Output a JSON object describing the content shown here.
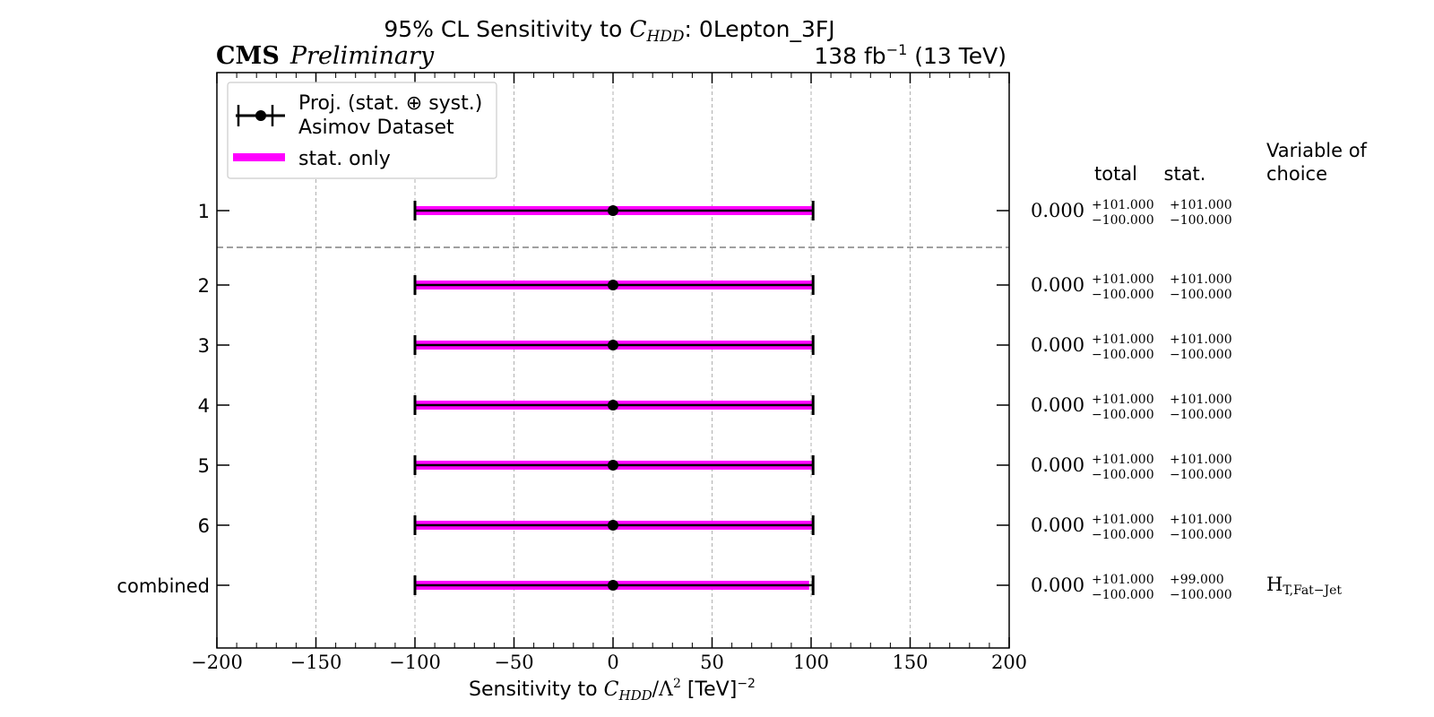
{
  "header": {
    "title_prefix": "95% CL Sensitivity to ",
    "title_var": "C",
    "title_sub": "HDD",
    "title_suffix": ": 0Lepton_3FJ",
    "experiment": "CMS",
    "status": "Preliminary",
    "lumi_value": "138 fb",
    "lumi_exp": "−1",
    "lumi_energy": " (13 TeV)"
  },
  "legend": {
    "proj_label": "Proj. (stat. ⊕ syst.)",
    "asimov_label": "Asimov Dataset",
    "stat_only_label": "stat. only"
  },
  "columns": {
    "total": "total",
    "stat": "stat.",
    "variable_line1": "Variable of",
    "variable_line2": "choice"
  },
  "xaxis": {
    "label_prefix": "Sensitivity to ",
    "label_var": "C",
    "label_sub": "HDD",
    "label_mid": "/Λ",
    "label_sq": "2",
    "label_unit": " [TeV]",
    "label_exp": "−2",
    "tick_labels": [
      "−200",
      "−150",
      "−100",
      "−50",
      "0",
      "50",
      "100",
      "150",
      "200"
    ]
  },
  "colors": {
    "stat_band": "#ff00ff",
    "total_bar": "#000000",
    "grid": "#b0b0b0",
    "separator": "#808080"
  },
  "chart_data": {
    "type": "scatter",
    "title": "95% CL Sensitivity to C_HDD: 0Lepton_3FJ",
    "xlabel": "Sensitivity to C_HDD/Λ^2 [TeV]^-2",
    "xlim": [
      -200,
      200
    ],
    "xticks": [
      -200,
      -150,
      -100,
      -50,
      0,
      50,
      100,
      150,
      200
    ],
    "grid": true,
    "legend_position": "top-left",
    "categories": [
      "1",
      "2",
      "3",
      "4",
      "5",
      "6",
      "combined"
    ],
    "central": [
      0.0,
      0.0,
      0.0,
      0.0,
      0.0,
      0.0,
      0.0
    ],
    "central_labels": [
      "0.000",
      "0.000",
      "0.000",
      "0.000",
      "0.000",
      "0.000",
      "0.000"
    ],
    "total_up": [
      101.0,
      101.0,
      101.0,
      101.0,
      101.0,
      101.0,
      101.0
    ],
    "total_down": [
      -100.0,
      -100.0,
      -100.0,
      -100.0,
      -100.0,
      -100.0,
      -100.0
    ],
    "stat_up": [
      101.0,
      101.0,
      101.0,
      101.0,
      101.0,
      101.0,
      99.0
    ],
    "stat_down": [
      -100.0,
      -100.0,
      -100.0,
      -100.0,
      -100.0,
      -100.0,
      -100.0
    ],
    "total_up_labels": [
      "+101.000",
      "+101.000",
      "+101.000",
      "+101.000",
      "+101.000",
      "+101.000",
      "+101.000"
    ],
    "total_down_labels": [
      "−100.000",
      "−100.000",
      "−100.000",
      "−100.000",
      "−100.000",
      "−100.000",
      "−100.000"
    ],
    "stat_up_labels": [
      "+101.000",
      "+101.000",
      "+101.000",
      "+101.000",
      "+101.000",
      "+101.000",
      "+99.000"
    ],
    "stat_down_labels": [
      "−100.000",
      "−100.000",
      "−100.000",
      "−100.000",
      "−100.000",
      "−100.000",
      "−100.000"
    ],
    "variable_main": [
      "",
      "",
      "",
      "",
      "",
      "",
      "H"
    ],
    "variable_sub": [
      "",
      "",
      "",
      "",
      "",
      "",
      "T,Fat−Jet"
    ]
  }
}
